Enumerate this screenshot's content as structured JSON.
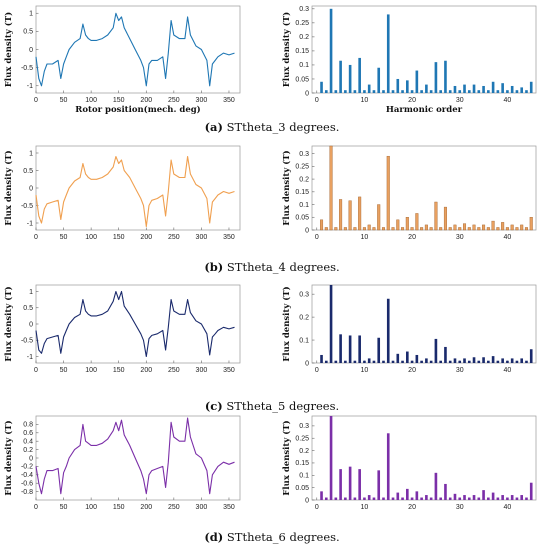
{
  "captions": [
    {
      "letter": "(a)",
      "text": "STtheta_3 degrees."
    },
    {
      "letter": "(b)",
      "text": "STtheta_4 degrees."
    },
    {
      "letter": "(c)",
      "text": "STtheta_5 degrees."
    },
    {
      "letter": "(d)",
      "text": "STtheta_6 degrees."
    }
  ],
  "chart_data": [
    {
      "type": "line",
      "panel": "a",
      "color": "#1f77b4",
      "xlabel": "Rotor position(mech. deg)",
      "ylabel": "Flux density (T)",
      "xlim": [
        0,
        370
      ],
      "ylim": [
        -1.2,
        1.2
      ],
      "yticks": [
        -1,
        -0.5,
        0,
        0.5,
        1
      ],
      "yticklabels": [
        "-1",
        "-0.5",
        "0",
        "0.5",
        "1"
      ],
      "xticks": [
        0,
        50,
        100,
        150,
        200,
        250,
        300,
        350
      ],
      "x": [
        0,
        5,
        10,
        15,
        20,
        30,
        40,
        45,
        50,
        55,
        60,
        70,
        80,
        85,
        90,
        95,
        100,
        110,
        120,
        130,
        140,
        145,
        150,
        155,
        160,
        170,
        180,
        190,
        195,
        200,
        205,
        210,
        220,
        230,
        235,
        240,
        245,
        250,
        260,
        270,
        275,
        280,
        290,
        300,
        310,
        315,
        320,
        325,
        330,
        340,
        350,
        360
      ],
      "y": [
        -0.2,
        -0.8,
        -1.0,
        -0.6,
        -0.4,
        -0.4,
        -0.3,
        -0.8,
        -0.4,
        -0.2,
        0.0,
        0.2,
        0.3,
        0.7,
        0.4,
        0.3,
        0.25,
        0.25,
        0.3,
        0.4,
        0.6,
        1.0,
        0.8,
        0.9,
        0.6,
        0.3,
        0.0,
        -0.3,
        -0.5,
        -1.0,
        -0.4,
        -0.3,
        -0.3,
        -0.2,
        -0.8,
        -0.1,
        0.8,
        0.4,
        0.3,
        0.3,
        0.9,
        0.4,
        0.1,
        0.0,
        -0.3,
        -1.0,
        -0.4,
        -0.3,
        -0.2,
        -0.1,
        -0.15,
        -0.1
      ]
    },
    {
      "type": "bar",
      "panel": "a",
      "color": "#1f77b4",
      "xlabel": "Harmonic order",
      "ylabel": "Flux density (T)",
      "xlim": [
        -1,
        46
      ],
      "ylim": [
        0,
        0.31
      ],
      "yticks": [
        0,
        0.05,
        0.1,
        0.15,
        0.2,
        0.25,
        0.3
      ],
      "yticklabels": [
        "0",
        "0.05",
        "0.1",
        "0.15",
        "0.2",
        "0.25",
        "0.3"
      ],
      "xticks": [
        0,
        10,
        20,
        30,
        40
      ],
      "categories": [
        1,
        2,
        3,
        4,
        5,
        6,
        7,
        8,
        9,
        10,
        11,
        12,
        13,
        14,
        15,
        16,
        17,
        18,
        19,
        20,
        21,
        22,
        23,
        24,
        25,
        26,
        27,
        28,
        29,
        30,
        31,
        32,
        33,
        34,
        35,
        36,
        37,
        38,
        39,
        40,
        41,
        42,
        43,
        44,
        45
      ],
      "values": [
        0.04,
        0.01,
        0.3,
        0.01,
        0.115,
        0.01,
        0.1,
        0.01,
        0.125,
        0.01,
        0.03,
        0.01,
        0.09,
        0.01,
        0.28,
        0.01,
        0.05,
        0.01,
        0.045,
        0.01,
        0.08,
        0.01,
        0.03,
        0.01,
        0.11,
        0.01,
        0.115,
        0.01,
        0.025,
        0.01,
        0.03,
        0.01,
        0.03,
        0.01,
        0.025,
        0.01,
        0.04,
        0.01,
        0.035,
        0.01,
        0.025,
        0.01,
        0.02,
        0.01,
        0.04
      ]
    },
    {
      "type": "line",
      "panel": "b",
      "color": "#f0a050",
      "xlabel": "",
      "ylabel": "Flux density (T)",
      "xlim": [
        0,
        370
      ],
      "ylim": [
        -1.2,
        1.2
      ],
      "yticks": [
        -1,
        -0.5,
        0,
        0.5,
        1
      ],
      "yticklabels": [
        "-1",
        "-0.5",
        "0",
        "0.5",
        "1"
      ],
      "xticks": [
        0,
        50,
        100,
        150,
        200,
        250,
        300,
        350
      ],
      "x": [
        0,
        5,
        10,
        15,
        20,
        30,
        40,
        45,
        50,
        55,
        60,
        70,
        80,
        85,
        90,
        95,
        100,
        110,
        120,
        130,
        140,
        145,
        150,
        155,
        160,
        170,
        180,
        190,
        195,
        200,
        205,
        210,
        220,
        230,
        235,
        240,
        245,
        250,
        260,
        270,
        275,
        280,
        290,
        300,
        310,
        315,
        320,
        325,
        330,
        340,
        350,
        360
      ],
      "y": [
        -0.2,
        -0.8,
        -1.0,
        -0.6,
        -0.45,
        -0.4,
        -0.35,
        -0.9,
        -0.4,
        -0.2,
        0.0,
        0.2,
        0.3,
        0.7,
        0.4,
        0.3,
        0.25,
        0.25,
        0.3,
        0.4,
        0.6,
        0.9,
        0.7,
        0.8,
        0.5,
        0.3,
        0.0,
        -0.3,
        -0.5,
        -1.1,
        -0.5,
        -0.35,
        -0.3,
        -0.2,
        -0.8,
        -0.1,
        0.8,
        0.4,
        0.3,
        0.3,
        0.9,
        0.4,
        0.1,
        0.0,
        -0.3,
        -1.0,
        -0.4,
        -0.3,
        -0.2,
        -0.1,
        -0.15,
        -0.1
      ]
    },
    {
      "type": "bar",
      "panel": "b",
      "color": "#e8a060",
      "xlabel": "",
      "ylabel": "Flux density (T)",
      "xlim": [
        -1,
        46
      ],
      "ylim": [
        0,
        0.33
      ],
      "yticks": [
        0,
        0.05,
        0.1,
        0.15,
        0.2,
        0.25,
        0.3
      ],
      "yticklabels": [
        "0",
        "0.05",
        "0.1",
        "0.15",
        "0.2",
        "0.25",
        "0.3"
      ],
      "xticks": [
        0,
        10,
        20,
        30,
        40
      ],
      "categories": [
        1,
        2,
        3,
        4,
        5,
        6,
        7,
        8,
        9,
        10,
        11,
        12,
        13,
        14,
        15,
        16,
        17,
        18,
        19,
        20,
        21,
        22,
        23,
        24,
        25,
        26,
        27,
        28,
        29,
        30,
        31,
        32,
        33,
        34,
        35,
        36,
        37,
        38,
        39,
        40,
        41,
        42,
        43,
        44,
        45
      ],
      "values": [
        0.04,
        0.01,
        0.33,
        0.01,
        0.12,
        0.01,
        0.115,
        0.01,
        0.13,
        0.01,
        0.02,
        0.01,
        0.1,
        0.01,
        0.29,
        0.01,
        0.04,
        0.01,
        0.05,
        0.01,
        0.065,
        0.01,
        0.02,
        0.01,
        0.11,
        0.01,
        0.09,
        0.01,
        0.02,
        0.01,
        0.025,
        0.01,
        0.02,
        0.01,
        0.02,
        0.01,
        0.035,
        0.01,
        0.03,
        0.01,
        0.02,
        0.01,
        0.02,
        0.01,
        0.05
      ]
    },
    {
      "type": "line",
      "panel": "c",
      "color": "#1a2a6c",
      "xlabel": "",
      "ylabel": "Flux density (T)",
      "xlim": [
        0,
        370
      ],
      "ylim": [
        -1.2,
        1.2
      ],
      "yticks": [
        -1,
        -0.5,
        0,
        0.5,
        1
      ],
      "yticklabels": [
        "-1",
        "-0.5",
        "0",
        "0.5",
        "1"
      ],
      "xticks": [
        0,
        50,
        100,
        150,
        200,
        250,
        300,
        350
      ],
      "x": [
        0,
        5,
        10,
        15,
        20,
        30,
        40,
        45,
        50,
        55,
        60,
        70,
        80,
        85,
        90,
        95,
        100,
        110,
        120,
        130,
        140,
        145,
        150,
        155,
        160,
        170,
        180,
        190,
        195,
        200,
        205,
        210,
        220,
        230,
        235,
        240,
        245,
        250,
        260,
        270,
        275,
        280,
        290,
        300,
        310,
        315,
        320,
        325,
        330,
        340,
        350,
        360
      ],
      "y": [
        -0.2,
        -0.8,
        -0.9,
        -0.6,
        -0.45,
        -0.4,
        -0.35,
        -0.9,
        -0.4,
        -0.2,
        0.0,
        0.2,
        0.3,
        0.75,
        0.4,
        0.3,
        0.25,
        0.25,
        0.3,
        0.4,
        0.7,
        1.0,
        0.75,
        1.0,
        0.55,
        0.3,
        0.0,
        -0.3,
        -0.5,
        -1.0,
        -0.45,
        -0.35,
        -0.3,
        -0.2,
        -0.8,
        -0.1,
        0.75,
        0.4,
        0.3,
        0.3,
        0.75,
        0.35,
        0.1,
        0.0,
        -0.3,
        -0.95,
        -0.4,
        -0.3,
        -0.2,
        -0.1,
        -0.15,
        -0.1
      ]
    },
    {
      "type": "bar",
      "panel": "c",
      "color": "#1a2a6c",
      "xlabel": "",
      "ylabel": "Flux density (T)",
      "xlim": [
        -1,
        46
      ],
      "ylim": [
        0,
        0.34
      ],
      "yticks": [
        0,
        0.1,
        0.2,
        0.3
      ],
      "yticklabels": [
        "0",
        "0.1",
        "0.2",
        "0.3"
      ],
      "xticks": [
        0,
        10,
        20,
        30,
        40
      ],
      "categories": [
        1,
        2,
        3,
        4,
        5,
        6,
        7,
        8,
        9,
        10,
        11,
        12,
        13,
        14,
        15,
        16,
        17,
        18,
        19,
        20,
        21,
        22,
        23,
        24,
        25,
        26,
        27,
        28,
        29,
        30,
        31,
        32,
        33,
        34,
        35,
        36,
        37,
        38,
        39,
        40,
        41,
        42,
        43,
        44,
        45
      ],
      "values": [
        0.035,
        0.01,
        0.34,
        0.01,
        0.125,
        0.01,
        0.12,
        0.01,
        0.12,
        0.01,
        0.02,
        0.01,
        0.11,
        0.01,
        0.28,
        0.01,
        0.04,
        0.01,
        0.05,
        0.01,
        0.035,
        0.01,
        0.02,
        0.01,
        0.105,
        0.01,
        0.07,
        0.01,
        0.02,
        0.01,
        0.02,
        0.01,
        0.025,
        0.01,
        0.025,
        0.01,
        0.03,
        0.01,
        0.02,
        0.01,
        0.02,
        0.01,
        0.02,
        0.01,
        0.06
      ]
    },
    {
      "type": "line",
      "panel": "d",
      "color": "#7b2fa8",
      "xlabel": "",
      "ylabel": "Flux density (T)",
      "xlim": [
        0,
        370
      ],
      "ylim": [
        -1.0,
        1.0
      ],
      "yticks": [
        -0.8,
        -0.6,
        -0.4,
        -0.2,
        0,
        0.2,
        0.4,
        0.6,
        0.8
      ],
      "yticklabels": [
        "-0.8",
        "-0.6",
        "-0.4",
        "-0.2",
        "0",
        "0.2",
        "0.4",
        "0.6",
        "0.8"
      ],
      "xticks": [
        0,
        50,
        100,
        150,
        200,
        250,
        300,
        350
      ],
      "x": [
        0,
        5,
        10,
        15,
        20,
        30,
        40,
        45,
        50,
        55,
        60,
        70,
        80,
        85,
        90,
        95,
        100,
        110,
        120,
        130,
        140,
        145,
        150,
        155,
        160,
        170,
        180,
        190,
        195,
        200,
        205,
        210,
        220,
        230,
        235,
        240,
        245,
        250,
        260,
        270,
        275,
        280,
        290,
        300,
        310,
        315,
        320,
        325,
        330,
        340,
        350,
        360
      ],
      "y": [
        -0.2,
        -0.6,
        -0.85,
        -0.5,
        -0.3,
        -0.3,
        -0.25,
        -0.85,
        -0.35,
        -0.2,
        0.0,
        0.2,
        0.3,
        0.8,
        0.4,
        0.35,
        0.3,
        0.3,
        0.35,
        0.45,
        0.65,
        0.85,
        0.65,
        0.9,
        0.55,
        0.3,
        0.0,
        -0.3,
        -0.5,
        -0.85,
        -0.4,
        -0.3,
        -0.25,
        -0.2,
        -0.7,
        -0.1,
        0.85,
        0.5,
        0.4,
        0.4,
        0.95,
        0.5,
        0.1,
        0.0,
        -0.3,
        -0.85,
        -0.4,
        -0.3,
        -0.2,
        -0.1,
        -0.15,
        -0.1
      ]
    },
    {
      "type": "bar",
      "panel": "d",
      "color": "#7b2fa8",
      "xlabel": "",
      "ylabel": "Flux density (T)",
      "xlim": [
        -1,
        46
      ],
      "ylim": [
        0,
        0.34
      ],
      "yticks": [
        0,
        0.05,
        0.1,
        0.15,
        0.2,
        0.25,
        0.3
      ],
      "yticklabels": [
        "0",
        "0.05",
        "0.1",
        "0.15",
        "0.2",
        "0.25",
        "0.3"
      ],
      "xticks": [
        0,
        10,
        20,
        30,
        40
      ],
      "categories": [
        1,
        2,
        3,
        4,
        5,
        6,
        7,
        8,
        9,
        10,
        11,
        12,
        13,
        14,
        15,
        16,
        17,
        18,
        19,
        20,
        21,
        22,
        23,
        24,
        25,
        26,
        27,
        28,
        29,
        30,
        31,
        32,
        33,
        34,
        35,
        36,
        37,
        38,
        39,
        40,
        41,
        42,
        43,
        44,
        45
      ],
      "values": [
        0.035,
        0.01,
        0.34,
        0.01,
        0.125,
        0.01,
        0.135,
        0.01,
        0.125,
        0.01,
        0.02,
        0.01,
        0.12,
        0.01,
        0.27,
        0.01,
        0.03,
        0.01,
        0.045,
        0.01,
        0.035,
        0.01,
        0.02,
        0.01,
        0.11,
        0.01,
        0.065,
        0.01,
        0.025,
        0.01,
        0.02,
        0.01,
        0.02,
        0.01,
        0.04,
        0.01,
        0.03,
        0.01,
        0.02,
        0.01,
        0.02,
        0.01,
        0.02,
        0.01,
        0.07
      ]
    }
  ]
}
